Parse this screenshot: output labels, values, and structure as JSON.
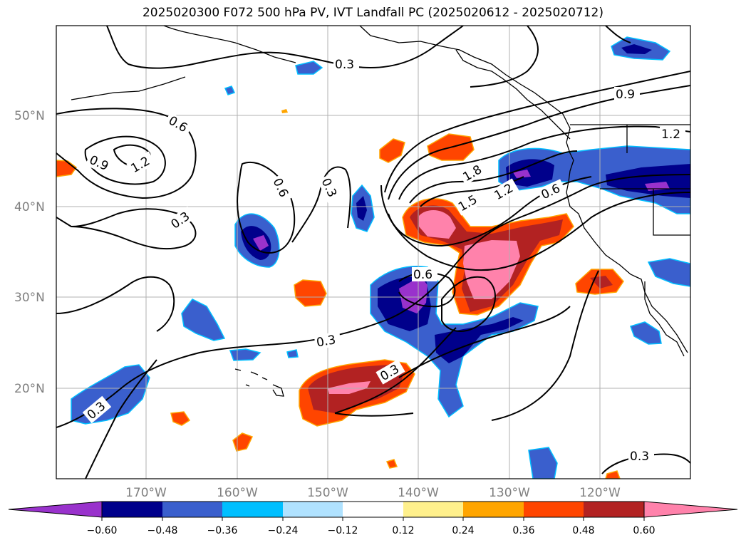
{
  "title": "2025020300 F072 500 hPa PV, IVT Landfall PC (2025020612 - 2025020712)",
  "map": {
    "type": "map",
    "lon_labels": [
      "170°W",
      "160°W",
      "150°W",
      "140°W",
      "130°W",
      "120°W"
    ],
    "lat_labels": [
      "50°N",
      "40°N",
      "30°N",
      "20°N"
    ],
    "contour_labels": [
      "0.3",
      "0.6",
      "0.9",
      "1.2",
      "1.5",
      "1.8"
    ],
    "colorbar": {
      "tick_labels": [
        "−0.60",
        "−0.48",
        "−0.36",
        "−0.24",
        "−0.12",
        "0.12",
        "0.24",
        "0.36",
        "0.48",
        "0.60"
      ],
      "colors": [
        "#9932cc",
        "#00008b",
        "#3a5fcd",
        "#00bfff",
        "#b0e2ff",
        "#ffffff",
        "#fff08c",
        "#ffa500",
        "#ff4500",
        "#b22222",
        "#ff82ab"
      ]
    }
  }
}
